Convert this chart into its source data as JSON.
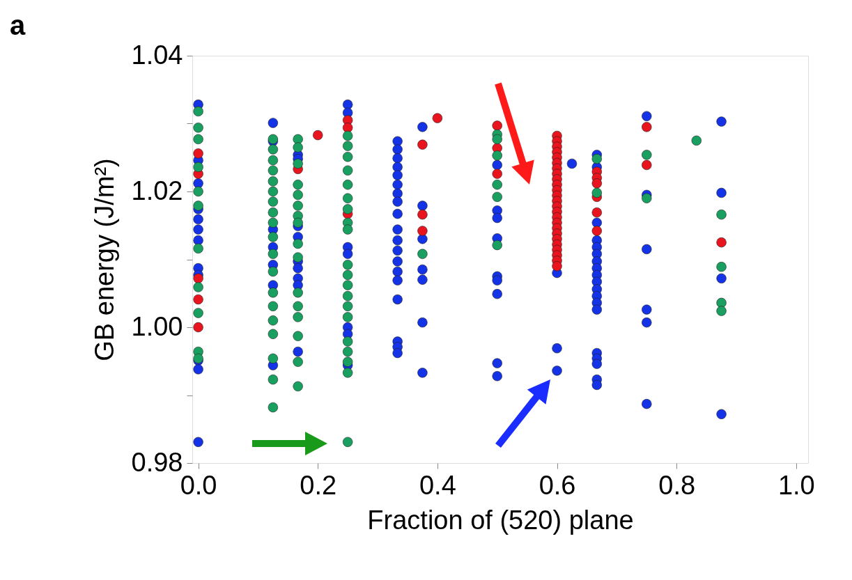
{
  "chart_data": {
    "type": "scatter",
    "xlabel": "Fraction of (520) plane",
    "ylabel": "GB energy (J/m²)",
    "annotations": [
      "a"
    ],
    "xlim": [
      -0.01,
      1.02
    ],
    "ylim": [
      0.98,
      1.04
    ],
    "xticks": [
      {
        "value": 0,
        "label": "0.0"
      },
      {
        "value": 0.2,
        "label": "0.2"
      },
      {
        "value": 0.4,
        "label": "0.4"
      },
      {
        "value": 0.6,
        "label": "0.6"
      },
      {
        "value": 0.8,
        "label": "0.8"
      },
      {
        "value": 1.0,
        "label": "1.0"
      }
    ],
    "yticks": [
      {
        "value": 0.98,
        "label": "0.98"
      },
      {
        "value": 0.99,
        "label": null
      },
      {
        "value": 1.0,
        "label": "1.00"
      },
      {
        "value": 1.01,
        "label": null
      },
      {
        "value": 1.02,
        "label": "1.02"
      },
      {
        "value": 1.03,
        "label": null
      },
      {
        "value": 1.04,
        "label": "1.04"
      }
    ],
    "grid": false,
    "legend": false,
    "marker": "circle",
    "series": [
      {
        "color": "#1432e6",
        "x": [
          0,
          0,
          0,
          0,
          0,
          0,
          0,
          0,
          0,
          0,
          0,
          0,
          0.125,
          0.125,
          0.125,
          0.125,
          0.125,
          0.125,
          0.125,
          0.1667,
          0.1667,
          0.1667,
          0.1667,
          0.1667,
          0.1667,
          0.1667,
          0.1667,
          0.1667,
          0.25,
          0.25,
          0.25,
          0.25,
          0.25,
          0.25,
          0.25,
          0.3333,
          0.3333,
          0.3333,
          0.3333,
          0.3333,
          0.3333,
          0.3333,
          0.3333,
          0.3333,
          0.3333,
          0.3333,
          0.3333,
          0.3333,
          0.3333,
          0.3333,
          0.3333,
          0.3333,
          0.3333,
          0.3333,
          0.375,
          0.375,
          0.375,
          0.375,
          0.375,
          0.375,
          0.375,
          0.5,
          0.5,
          0.5,
          0.5,
          0.5,
          0.5,
          0.5,
          0.5,
          0.5,
          0.6,
          0.6,
          0.6,
          0.625,
          0.6667,
          0.6667,
          0.6667,
          0.6667,
          0.6667,
          0.6667,
          0.6667,
          0.6667,
          0.6667,
          0.6667,
          0.6667,
          0.6667,
          0.6667,
          0.6667,
          0.6667,
          0.6667,
          0.6667,
          0.6667,
          0.6667,
          0.75,
          0.75,
          0.75,
          0.75,
          0.75,
          0.75,
          0.875,
          0.875,
          0.875,
          0.875
        ],
        "values": [
          1.0328,
          1.0246,
          1.0212,
          1.0174,
          1.0159,
          1.0144,
          1.0128,
          1.0087,
          1.0077,
          0.9951,
          0.9938,
          0.9831,
          1.0301,
          1.0274,
          1.0144,
          1.0118,
          1.0092,
          1.0062,
          0.9944,
          1.0254,
          1.0248,
          1.0149,
          1.0133,
          1.0097,
          1.0087,
          1.0072,
          1.0062,
          0.9964,
          1.0328,
          1.0316,
          1.0118,
          1.0108,
          1.0,
          0.999,
          0.9944,
          1.0274,
          1.0262,
          1.0249,
          1.0236,
          1.0224,
          1.021,
          1.0197,
          1.0185,
          1.0167,
          1.0144,
          1.0128,
          1.0113,
          1.0097,
          1.0082,
          1.0069,
          1.0041,
          0.9979,
          0.9971,
          0.9962,
          1.0295,
          1.0179,
          1.013,
          1.0085,
          1.007,
          1.0007,
          0.9933,
          1.0239,
          1.0172,
          1.0161,
          1.0131,
          1.0075,
          1.0069,
          1.0049,
          0.9947,
          0.9928,
          1.008,
          0.9969,
          0.9936,
          1.0241,
          1.0254,
          1.0236,
          1.0154,
          1.0128,
          1.0118,
          1.0108,
          1.0097,
          1.0087,
          1.0077,
          1.0067,
          1.0056,
          1.0046,
          1.0036,
          1.0026,
          0.9962,
          0.9954,
          0.9946,
          0.9923,
          0.9915,
          1.0311,
          1.0195,
          1.0115,
          1.0026,
          1.0007,
          0.9887,
          1.0303,
          1.0198,
          1.0072,
          0.9872
        ]
      },
      {
        "color": "#e8141e",
        "x": [
          0,
          0,
          0,
          0,
          0,
          0.1667,
          0.2,
          0.25,
          0.25,
          0.25,
          0.375,
          0.375,
          0.375,
          0.4,
          0.5,
          0.5,
          0.5,
          0.6,
          0.6,
          0.6,
          0.6,
          0.6,
          0.6,
          0.6,
          0.6,
          0.6,
          0.6,
          0.6,
          0.6,
          0.6,
          0.6,
          0.6,
          0.6,
          0.6,
          0.6,
          0.6,
          0.6,
          0.6,
          0.6,
          0.6,
          0.6,
          0.6,
          0.6667,
          0.6667,
          0.6667,
          0.6667,
          0.6667,
          0.6667,
          0.75,
          0.75,
          0.875
        ],
        "values": [
          1.0256,
          1.0226,
          1.0072,
          1.0041,
          1.0,
          1.0233,
          1.0283,
          1.0305,
          1.0294,
          1.0167,
          1.0269,
          1.0166,
          1.0142,
          1.0308,
          1.0297,
          1.0264,
          1.0226,
          1.0282,
          1.0274,
          1.0266,
          1.0258,
          1.025,
          1.0242,
          1.0234,
          1.0226,
          1.0218,
          1.021,
          1.0202,
          1.0194,
          1.0186,
          1.0178,
          1.017,
          1.0162,
          1.0154,
          1.0146,
          1.0138,
          1.013,
          1.0122,
          1.0114,
          1.0106,
          1.0098,
          1.009,
          1.0229,
          1.022,
          1.0212,
          1.0192,
          1.0169,
          1.0142,
          1.0295,
          1.0239,
          1.0125
        ]
      },
      {
        "color": "#19a060",
        "x": [
          0,
          0,
          0,
          0,
          0,
          0,
          0,
          0,
          0,
          0,
          0,
          0.125,
          0.125,
          0.125,
          0.125,
          0.125,
          0.125,
          0.125,
          0.125,
          0.125,
          0.125,
          0.125,
          0.125,
          0.125,
          0.125,
          0.125,
          0.125,
          0.125,
          0.125,
          0.125,
          0.1667,
          0.1667,
          0.1667,
          0.1667,
          0.1667,
          0.1667,
          0.1667,
          0.1667,
          0.1667,
          0.1667,
          0.1667,
          0.1667,
          0.1667,
          0.1667,
          0.1667,
          0.1667,
          0.25,
          0.25,
          0.25,
          0.25,
          0.25,
          0.25,
          0.25,
          0.25,
          0.25,
          0.25,
          0.25,
          0.25,
          0.25,
          0.25,
          0.25,
          0.25,
          0.25,
          0.25,
          0.25,
          0.25,
          0.375,
          0.5,
          0.5,
          0.5,
          0.5,
          0.5,
          0.5,
          0.6667,
          0.6667,
          0.75,
          0.75,
          0.8333,
          0.875,
          0.875,
          0.875,
          0.875
        ],
        "values": [
          1.0318,
          1.0294,
          1.0277,
          1.0236,
          1.02,
          1.0179,
          1.0116,
          1.0059,
          1.0021,
          0.9964,
          0.9954,
          1.0277,
          1.0262,
          1.0246,
          1.0231,
          1.0215,
          1.02,
          1.0185,
          1.0169,
          1.0154,
          1.0133,
          1.0108,
          1.0082,
          1.0051,
          1.0031,
          1.001,
          0.999,
          0.9954,
          0.9923,
          0.9882,
          1.0277,
          1.0265,
          1.0241,
          1.021,
          1.0195,
          1.0179,
          1.0164,
          1.0154,
          1.0123,
          1.0103,
          1.0051,
          1.0031,
          1.0015,
          0.9987,
          0.9949,
          0.9913,
          1.0282,
          1.0267,
          1.0251,
          1.0231,
          1.021,
          1.019,
          1.0174,
          1.0154,
          1.0144,
          1.0092,
          1.0077,
          1.0062,
          1.0046,
          1.0031,
          1.0015,
          0.9979,
          0.9964,
          0.9949,
          0.9933,
          0.9831,
          1.0108,
          1.0284,
          1.0277,
          1.0253,
          1.021,
          1.0192,
          1.0121,
          1.0248,
          1.0198,
          1.0254,
          1.019,
          1.0275,
          1.0166,
          1.0089,
          1.0036,
          1.0024
        ]
      }
    ]
  }
}
